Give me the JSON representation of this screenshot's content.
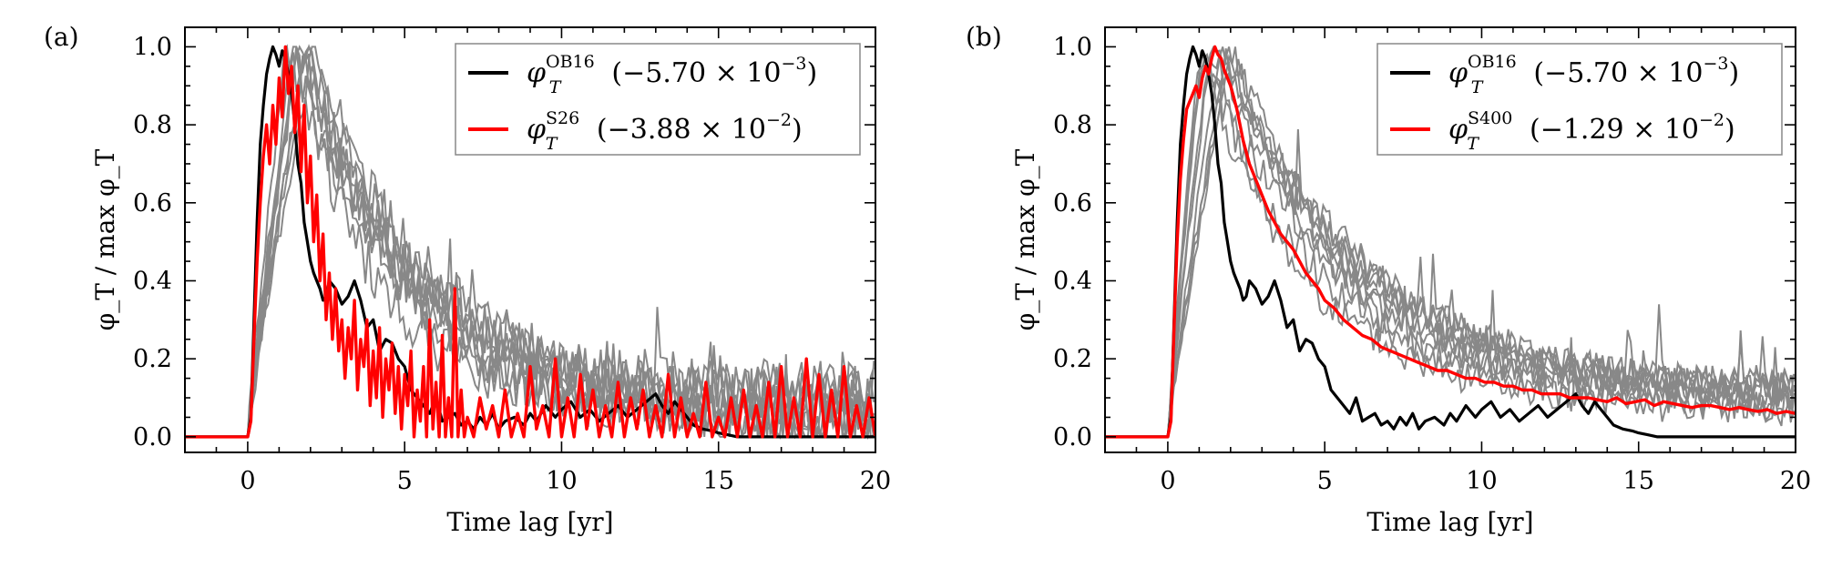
{
  "chart_data": [
    {
      "type": "line",
      "panel_label": "(a)",
      "xlabel": "Time lag [yr]",
      "ylabel": "φ_T / max φ_T",
      "xlim": [
        -2,
        20
      ],
      "ylim": [
        -0.04,
        1.05
      ],
      "xticks": [
        "0",
        "5",
        "10",
        "15",
        "20"
      ],
      "yticks": [
        "0.0",
        "0.2",
        "0.4",
        "0.6",
        "0.8",
        "1.0"
      ],
      "legend_position": "top-right",
      "series": [
        {
          "name": "φ_T^OB16 (−5.70 × 10^−3)",
          "legend": {
            "sym": "φ",
            "sub": "T",
            "sup": "OB16",
            "value": "(−5.70 × 10",
            "exp": "−3",
            "close": ")"
          },
          "color": "#000000",
          "x": [
            -2,
            0,
            0.1,
            0.2,
            0.3,
            0.4,
            0.5,
            0.6,
            0.7,
            0.8,
            0.9,
            1.0,
            1.1,
            1.2,
            1.3,
            1.4,
            1.5,
            1.6,
            1.7,
            1.8,
            1.9,
            2.0,
            2.1,
            2.2,
            2.3,
            2.4,
            2.5,
            2.6,
            2.8,
            3.0,
            3.2,
            3.4,
            3.6,
            3.8,
            4.0,
            4.2,
            4.4,
            4.6,
            4.8,
            5.0,
            5.2,
            5.4,
            5.6,
            5.8,
            6.0,
            6.2,
            6.4,
            6.6,
            6.8,
            7.0,
            7.2,
            7.4,
            7.6,
            7.8,
            8.0,
            8.2,
            8.5,
            8.8,
            9.0,
            9.2,
            9.5,
            9.8,
            10.0,
            10.3,
            10.6,
            10.9,
            11.2,
            11.5,
            11.8,
            12.1,
            12.4,
            12.7,
            13.0,
            13.2,
            13.4,
            13.6,
            13.8,
            14.0,
            14.2,
            14.5,
            14.8,
            15.0,
            15.3,
            15.6,
            16.0,
            20.0
          ],
          "y": [
            0,
            0,
            0.05,
            0.3,
            0.55,
            0.75,
            0.85,
            0.93,
            0.97,
            1.0,
            0.98,
            0.95,
            0.99,
            0.97,
            0.93,
            0.88,
            0.8,
            0.7,
            0.65,
            0.55,
            0.5,
            0.45,
            0.42,
            0.4,
            0.38,
            0.35,
            0.36,
            0.4,
            0.38,
            0.34,
            0.36,
            0.4,
            0.35,
            0.28,
            0.3,
            0.22,
            0.25,
            0.24,
            0.2,
            0.18,
            0.12,
            0.1,
            0.08,
            0.06,
            0.1,
            0.04,
            0.05,
            0.06,
            0.03,
            0.04,
            0.02,
            0.05,
            0.03,
            0.06,
            0.02,
            0.04,
            0.05,
            0.03,
            0.06,
            0.04,
            0.08,
            0.05,
            0.07,
            0.09,
            0.05,
            0.07,
            0.04,
            0.06,
            0.08,
            0.05,
            0.07,
            0.09,
            0.11,
            0.08,
            0.06,
            0.09,
            0.07,
            0.05,
            0.03,
            0.02,
            0.015,
            0.01,
            0.005,
            0.0,
            0.0,
            0.0
          ]
        },
        {
          "name": "φ_T^S26 (−3.88 × 10^−2)",
          "legend": {
            "sym": "φ",
            "sub": "T",
            "sup": "S26",
            "value": "(−3.88 × 10",
            "exp": "−2",
            "close": ")"
          },
          "color": "#ff0000",
          "x": [
            -2,
            0,
            0.1,
            0.2,
            0.3,
            0.4,
            0.5,
            0.6,
            0.7,
            0.8,
            0.9,
            1.0,
            1.1,
            1.2,
            1.3,
            1.4,
            1.5,
            1.6,
            1.7,
            1.8,
            1.9,
            2.0,
            2.1,
            2.2,
            2.3,
            2.4,
            2.5,
            2.6,
            2.7,
            2.8,
            2.9,
            3.0,
            3.1,
            3.2,
            3.3,
            3.4,
            3.5,
            3.6,
            3.7,
            3.8,
            3.9,
            4.0,
            4.1,
            4.2,
            4.3,
            4.4,
            4.5,
            4.6,
            4.7,
            4.8,
            4.9,
            5.0,
            5.1,
            5.2,
            5.3,
            5.4,
            5.5,
            5.6,
            5.7,
            5.8,
            5.9,
            6.0,
            6.1,
            6.2,
            6.3,
            6.4,
            6.5,
            6.6,
            6.7,
            6.8,
            6.9,
            7.0,
            7.2,
            7.4,
            7.6,
            7.8,
            8.0,
            8.2,
            8.4,
            8.6,
            8.8,
            9.0,
            9.2,
            9.4,
            9.6,
            9.8,
            10.0,
            10.2,
            10.4,
            10.6,
            10.8,
            11.0,
            11.2,
            11.4,
            11.6,
            11.8,
            12.0,
            12.2,
            12.4,
            12.6,
            12.8,
            13.0,
            13.2,
            13.4,
            13.6,
            13.8,
            14.0,
            14.2,
            14.4,
            14.6,
            14.8,
            15.0,
            15.2,
            15.4,
            15.6,
            15.8,
            16.0,
            16.2,
            16.4,
            16.6,
            16.8,
            17.0,
            17.2,
            17.4,
            17.6,
            17.8,
            18.0,
            18.2,
            18.4,
            18.6,
            18.8,
            19.0,
            19.2,
            19.4,
            19.6,
            19.8,
            20.0
          ],
          "y": [
            0,
            0,
            0.04,
            0.25,
            0.45,
            0.6,
            0.72,
            0.8,
            0.7,
            0.85,
            0.75,
            0.92,
            0.82,
            1.0,
            0.88,
            0.95,
            0.78,
            0.9,
            0.68,
            0.85,
            0.6,
            0.72,
            0.5,
            0.62,
            0.4,
            0.52,
            0.3,
            0.42,
            0.25,
            0.38,
            0.22,
            0.3,
            0.15,
            0.28,
            0.2,
            0.35,
            0.12,
            0.25,
            0.18,
            0.3,
            0.08,
            0.22,
            0.1,
            0.28,
            0.05,
            0.2,
            0.12,
            0.24,
            0.06,
            0.18,
            0.02,
            0.16,
            0.08,
            0.22,
            0.0,
            0.12,
            0.04,
            0.18,
            0.0,
            0.3,
            0.02,
            0.14,
            0.0,
            0.26,
            0.0,
            0.1,
            0.0,
            0.38,
            0.0,
            0.12,
            0.0,
            0.05,
            0.0,
            0.1,
            0.02,
            0.08,
            0.0,
            0.12,
            0.0,
            0.06,
            0.0,
            0.18,
            0.02,
            0.08,
            0.0,
            0.2,
            0.0,
            0.1,
            0.0,
            0.16,
            0.02,
            0.12,
            0.0,
            0.08,
            0.0,
            0.14,
            0.0,
            0.1,
            0.02,
            0.12,
            0.0,
            0.08,
            0.0,
            0.16,
            0.0,
            0.1,
            0.0,
            0.06,
            0.0,
            0.14,
            0.0,
            0.05,
            0.0,
            0.1,
            0.0,
            0.12,
            0.0,
            0.08,
            0.0,
            0.14,
            0.0,
            0.18,
            0.0,
            0.1,
            0.0,
            0.2,
            0.0,
            0.16,
            0.0,
            0.12,
            0.0,
            0.18,
            0.0,
            0.08,
            0.0,
            0.1,
            0.0
          ]
        }
      ],
      "background_series_color": "#888888"
    },
    {
      "type": "line",
      "panel_label": "(b)",
      "xlabel": "Time lag [yr]",
      "ylabel": "φ_T / max φ_T",
      "xlim": [
        -2,
        20
      ],
      "ylim": [
        -0.04,
        1.05
      ],
      "xticks": [
        "0",
        "5",
        "10",
        "15",
        "20"
      ],
      "yticks": [
        "0.0",
        "0.2",
        "0.4",
        "0.6",
        "0.8",
        "1.0"
      ],
      "legend_position": "top-right",
      "series": [
        {
          "name": "φ_T^OB16 (−5.70 × 10^−3)",
          "legend": {
            "sym": "φ",
            "sub": "T",
            "sup": "OB16",
            "value": "(−5.70 × 10",
            "exp": "−3",
            "close": ")"
          },
          "color": "#000000",
          "x": [
            -2,
            0,
            0.1,
            0.2,
            0.3,
            0.4,
            0.5,
            0.6,
            0.7,
            0.8,
            0.9,
            1.0,
            1.1,
            1.2,
            1.3,
            1.4,
            1.5,
            1.6,
            1.7,
            1.8,
            1.9,
            2.0,
            2.1,
            2.2,
            2.3,
            2.4,
            2.5,
            2.6,
            2.8,
            3.0,
            3.2,
            3.4,
            3.6,
            3.8,
            4.0,
            4.2,
            4.4,
            4.6,
            4.8,
            5.0,
            5.2,
            5.4,
            5.6,
            5.8,
            6.0,
            6.2,
            6.4,
            6.6,
            6.8,
            7.0,
            7.2,
            7.4,
            7.6,
            7.8,
            8.0,
            8.2,
            8.5,
            8.8,
            9.0,
            9.2,
            9.5,
            9.8,
            10.0,
            10.3,
            10.6,
            10.9,
            11.2,
            11.5,
            11.8,
            12.1,
            12.4,
            12.7,
            13.0,
            13.2,
            13.4,
            13.6,
            13.8,
            14.0,
            14.2,
            14.5,
            14.8,
            15.0,
            15.3,
            15.6,
            16.0,
            20.0
          ],
          "y": [
            0,
            0,
            0.05,
            0.3,
            0.55,
            0.75,
            0.85,
            0.93,
            0.97,
            1.0,
            0.98,
            0.95,
            0.99,
            0.97,
            0.93,
            0.88,
            0.8,
            0.7,
            0.65,
            0.55,
            0.5,
            0.45,
            0.42,
            0.4,
            0.38,
            0.35,
            0.36,
            0.4,
            0.38,
            0.34,
            0.36,
            0.4,
            0.35,
            0.28,
            0.3,
            0.22,
            0.25,
            0.24,
            0.2,
            0.18,
            0.12,
            0.1,
            0.08,
            0.06,
            0.1,
            0.04,
            0.05,
            0.06,
            0.03,
            0.04,
            0.02,
            0.05,
            0.03,
            0.06,
            0.02,
            0.04,
            0.05,
            0.03,
            0.06,
            0.04,
            0.08,
            0.05,
            0.07,
            0.09,
            0.05,
            0.07,
            0.04,
            0.06,
            0.08,
            0.05,
            0.07,
            0.09,
            0.11,
            0.08,
            0.06,
            0.09,
            0.07,
            0.05,
            0.03,
            0.02,
            0.015,
            0.01,
            0.005,
            0.0,
            0.0,
            0.0
          ]
        },
        {
          "name": "φ_T^S400 (−1.29 × 10^−2)",
          "legend": {
            "sym": "φ",
            "sub": "T",
            "sup": "S400",
            "value": "(−1.29 × 10",
            "exp": "−2",
            "close": ")"
          },
          "color": "#ff0000",
          "x": [
            -2,
            0,
            0.1,
            0.2,
            0.3,
            0.4,
            0.5,
            0.6,
            0.7,
            0.8,
            0.9,
            1.0,
            1.1,
            1.2,
            1.3,
            1.4,
            1.5,
            1.6,
            1.7,
            1.8,
            1.9,
            2.0,
            2.1,
            2.2,
            2.3,
            2.4,
            2.5,
            2.6,
            2.8,
            3.0,
            3.2,
            3.4,
            3.6,
            3.8,
            4.0,
            4.2,
            4.4,
            4.6,
            4.8,
            5.0,
            5.3,
            5.6,
            5.9,
            6.2,
            6.5,
            6.8,
            7.1,
            7.4,
            7.7,
            8.0,
            8.3,
            8.6,
            8.9,
            9.2,
            9.5,
            9.8,
            10.1,
            10.4,
            10.7,
            11.0,
            11.3,
            11.6,
            11.9,
            12.2,
            12.5,
            12.8,
            13.1,
            13.4,
            13.7,
            14.0,
            14.3,
            14.6,
            14.9,
            15.2,
            15.5,
            15.8,
            16.1,
            16.4,
            16.7,
            17.0,
            17.3,
            17.6,
            17.9,
            18.2,
            18.5,
            18.8,
            19.1,
            19.4,
            19.7,
            20.0
          ],
          "y": [
            0,
            0,
            0.04,
            0.28,
            0.5,
            0.66,
            0.76,
            0.84,
            0.86,
            0.88,
            0.9,
            0.87,
            0.92,
            0.95,
            0.93,
            0.97,
            1.0,
            0.98,
            0.97,
            0.94,
            0.92,
            0.9,
            0.87,
            0.84,
            0.8,
            0.76,
            0.73,
            0.7,
            0.66,
            0.62,
            0.58,
            0.55,
            0.52,
            0.5,
            0.48,
            0.45,
            0.42,
            0.4,
            0.38,
            0.35,
            0.33,
            0.3,
            0.28,
            0.26,
            0.25,
            0.23,
            0.22,
            0.21,
            0.2,
            0.19,
            0.18,
            0.17,
            0.17,
            0.16,
            0.15,
            0.15,
            0.14,
            0.14,
            0.13,
            0.13,
            0.12,
            0.12,
            0.11,
            0.11,
            0.11,
            0.1,
            0.1,
            0.1,
            0.095,
            0.09,
            0.1,
            0.085,
            0.09,
            0.095,
            0.08,
            0.09,
            0.085,
            0.08,
            0.075,
            0.08,
            0.08,
            0.075,
            0.07,
            0.075,
            0.07,
            0.065,
            0.07,
            0.06,
            0.065,
            0.06
          ]
        }
      ],
      "background_series_color": "#888888"
    }
  ]
}
